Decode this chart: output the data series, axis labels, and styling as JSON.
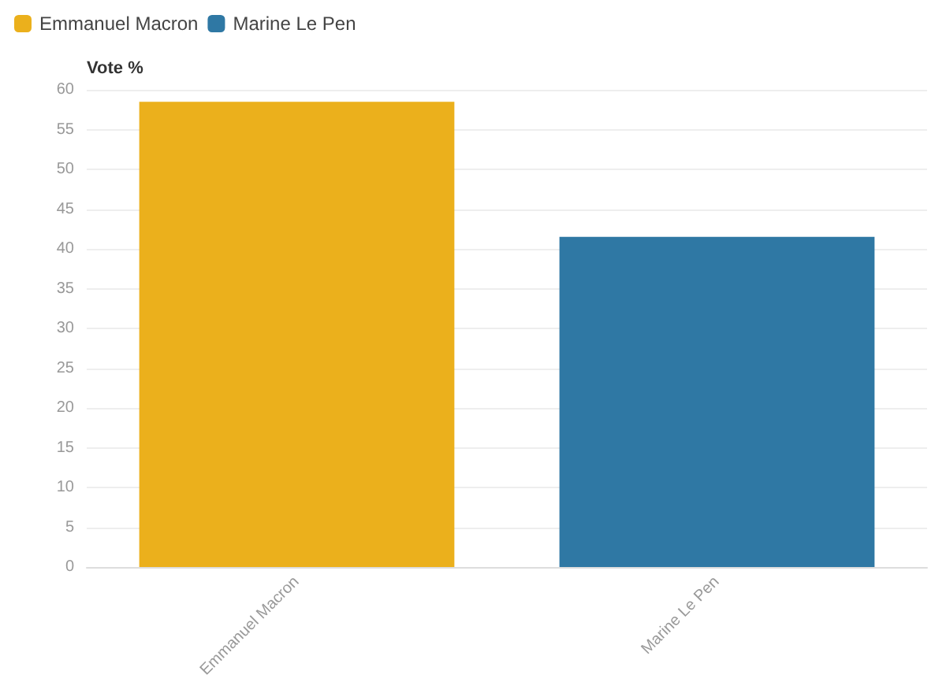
{
  "chart_data": {
    "type": "bar",
    "ylabel": "Vote %",
    "categories": [
      "Emmanuel Macron",
      "Marine Le Pen"
    ],
    "series": [
      {
        "name": "Emmanuel Macron",
        "color": "#ebb01c",
        "values": [
          58.5,
          null
        ]
      },
      {
        "name": "Marine Le Pen",
        "color": "#2f78a4",
        "values": [
          null,
          41.5
        ]
      }
    ],
    "ylim": [
      0,
      60
    ],
    "yticks": [
      0,
      5,
      10,
      15,
      20,
      25,
      30,
      35,
      40,
      45,
      50,
      55,
      60
    ],
    "grid": "y",
    "legend": "top left"
  }
}
